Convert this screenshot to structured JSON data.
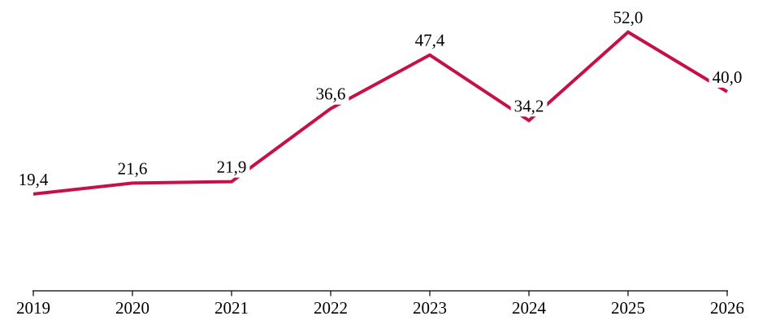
{
  "chart_data": {
    "type": "line",
    "title": "",
    "xlabel": "",
    "ylabel": "",
    "categories": [
      "2019",
      "2020",
      "2021",
      "2022",
      "2023",
      "2024",
      "2025",
      "2026"
    ],
    "values": [
      19.4,
      21.6,
      21.9,
      36.6,
      47.4,
      34.2,
      52.0,
      40.0
    ],
    "point_labels": [
      "19,4",
      "21,6",
      "21,9",
      "36,6",
      "47,4",
      "34,2",
      "52,0",
      "40,0"
    ],
    "decimal_separator": ",",
    "ylim": [
      0,
      57
    ],
    "grid": false,
    "legend": false,
    "markers": "none",
    "line_color": "#C51148",
    "axis_color": "#000000",
    "label_color": "#000000",
    "background": "#FFFFFF"
  }
}
